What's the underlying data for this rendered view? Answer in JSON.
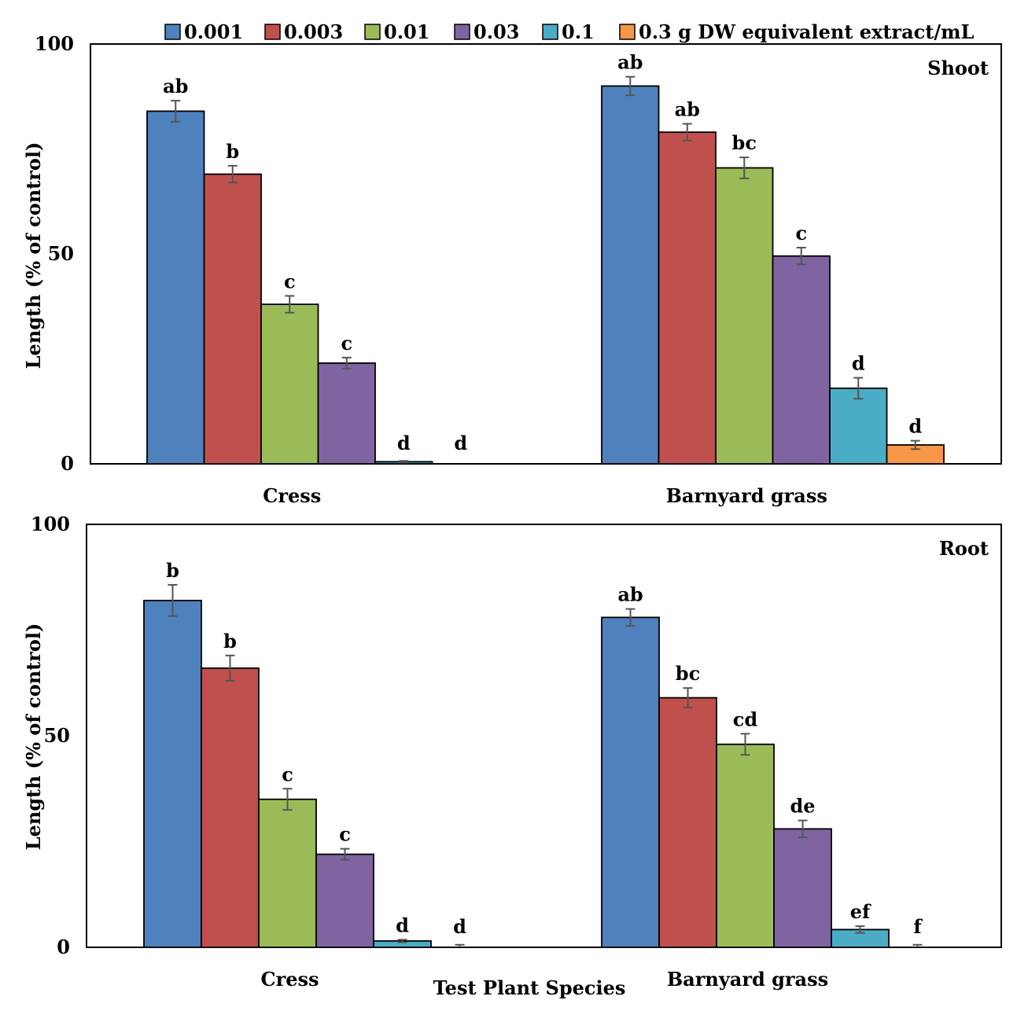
{
  "legend": {
    "entries": [
      {
        "label": "0.001",
        "color": "#4F81BD"
      },
      {
        "label": "0.003",
        "color": "#C0504D"
      },
      {
        "label": "0.01",
        "color": "#9BBB59"
      },
      {
        "label": "0.03",
        "color": "#8064A2"
      },
      {
        "label": "0.1",
        "color": "#4BACC6"
      },
      {
        "label": "0.3 g DW equivalent extract/mL",
        "color": "#F79646"
      }
    ]
  },
  "x_axis_title": "Test Plant Species",
  "chart_data": [
    {
      "type": "bar",
      "panel_label": "Shoot",
      "ylabel": "Length (% of control)",
      "ylim": [
        0,
        100
      ],
      "yticks": [
        0,
        50,
        100
      ],
      "categories": [
        "Cress",
        "Barnyard grass"
      ],
      "series": [
        {
          "name": "0.001",
          "values": [
            84,
            90
          ],
          "errors": [
            2.5,
            2.2
          ],
          "letters": [
            "ab",
            "ab"
          ]
        },
        {
          "name": "0.003",
          "values": [
            69,
            79
          ],
          "errors": [
            2.0,
            2.0
          ],
          "letters": [
            "b",
            "ab"
          ]
        },
        {
          "name": "0.01",
          "values": [
            38,
            70.5
          ],
          "errors": [
            2.0,
            2.5
          ],
          "letters": [
            "c",
            "bc"
          ]
        },
        {
          "name": "0.03",
          "values": [
            24,
            49.5
          ],
          "errors": [
            1.3,
            2.0
          ],
          "letters": [
            "c",
            "c"
          ]
        },
        {
          "name": "0.1",
          "values": [
            0.5,
            18
          ],
          "errors": [
            0.2,
            2.5
          ],
          "letters": [
            "d",
            "d"
          ]
        },
        {
          "name": "0.3 g DW equivalent extract/mL",
          "values": [
            0,
            4.5
          ],
          "errors": [
            0,
            1.0
          ],
          "letters": [
            "d",
            "d"
          ]
        }
      ]
    },
    {
      "type": "bar",
      "panel_label": "Root",
      "ylabel": "Length (% of control)",
      "ylim": [
        0,
        100
      ],
      "yticks": [
        0,
        50,
        100
      ],
      "categories": [
        "Cress",
        "Barnyard grass"
      ],
      "series": [
        {
          "name": "0.001",
          "values": [
            82,
            78
          ],
          "errors": [
            3.7,
            2.0
          ],
          "letters": [
            "b",
            "ab"
          ]
        },
        {
          "name": "0.003",
          "values": [
            66,
            59
          ],
          "errors": [
            3.0,
            2.3
          ],
          "letters": [
            "b",
            "bc"
          ]
        },
        {
          "name": "0.01",
          "values": [
            35,
            48
          ],
          "errors": [
            2.5,
            2.5
          ],
          "letters": [
            "c",
            "cd"
          ]
        },
        {
          "name": "0.03",
          "values": [
            22,
            28
          ],
          "errors": [
            1.3,
            2.0
          ],
          "letters": [
            "c",
            "de"
          ]
        },
        {
          "name": "0.1",
          "values": [
            1.5,
            4.2
          ],
          "errors": [
            0.3,
            0.8
          ],
          "letters": [
            "d",
            "ef"
          ]
        },
        {
          "name": "0.3 g DW equivalent extract/mL",
          "values": [
            0,
            0
          ],
          "errors": [
            0.6,
            0.6
          ],
          "letters": [
            "d",
            "f"
          ]
        }
      ]
    }
  ]
}
